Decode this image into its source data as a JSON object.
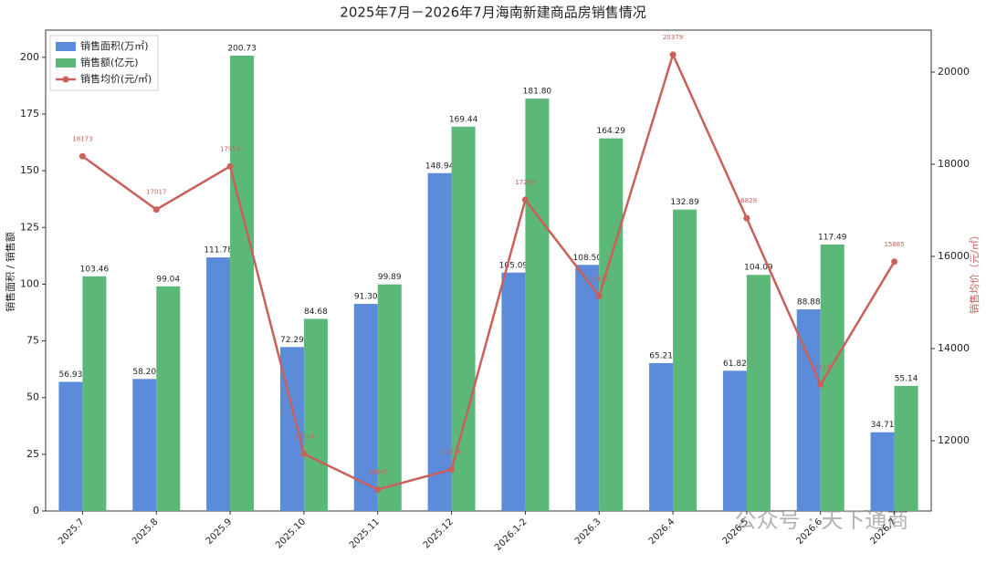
{
  "chart_data": {
    "type": "bar",
    "title": "2025年7月－2026年7月海南新建商品房销售情况",
    "y_label": "销售面积 / 销售额",
    "y2_label": "销售均价（元/㎡）",
    "watermark": "公众号 · 天下通商",
    "categories": [
      "2025.7",
      "2025.8",
      "2025.9",
      "2025.10",
      "2025.11",
      "2025.12",
      "2026.1-2",
      "2026.3",
      "2026.4",
      "2026.5",
      "2026.6",
      "2026.7"
    ],
    "series": [
      {
        "name": "销售面积(万㎡)",
        "color": "#5b8bd9",
        "values": [
          56.93,
          58.2,
          111.78,
          72.29,
          91.3,
          148.94,
          105.09,
          108.5,
          65.21,
          61.82,
          88.88,
          34.71
        ],
        "value_labels": [
          "56.93",
          "58.20",
          "111.78",
          "72.29",
          "91.30",
          "148.94",
          "105.09",
          "108.50",
          "65.21",
          "61.82",
          "88.88",
          "34.71"
        ]
      },
      {
        "name": "销售额(亿元)",
        "color": "#5cb878",
        "values": [
          103.46,
          99.04,
          200.73,
          84.68,
          99.89,
          169.44,
          181.8,
          164.29,
          132.89,
          104.09,
          117.49,
          55.14
        ],
        "value_labels": [
          "103.46",
          "99.04",
          "200.73",
          "84.68",
          "99.89",
          "169.44",
          "181.80",
          "164.29",
          "132.89",
          "104.09",
          "117.49",
          "55.14"
        ]
      },
      {
        "name": "销售均价(元/㎡)",
        "type": "line",
        "axis": "y2",
        "color": "#c9605a",
        "values": [
          18173,
          17017,
          17954,
          11714,
          10941,
          11376,
          17229,
          15142,
          20379,
          16829,
          13219,
          15885
        ]
      }
    ],
    "ylim": [
      0,
      212
    ],
    "yticks": [
      0,
      25,
      50,
      75,
      100,
      125,
      150,
      175,
      200
    ],
    "y2lim": [
      10475,
      20911
    ],
    "y2ticks": [
      12000,
      14000,
      16000,
      18000,
      20000
    ],
    "legend": "upper-left"
  }
}
